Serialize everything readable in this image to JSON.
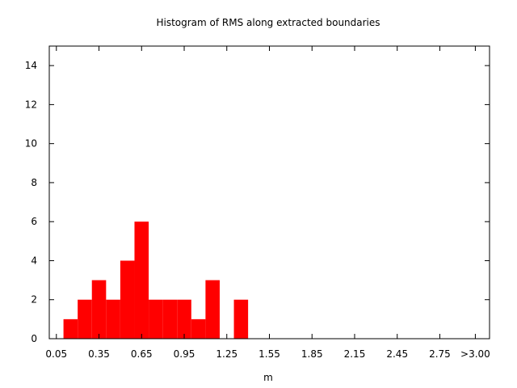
{
  "chart_data": {
    "type": "bar",
    "title": "Histogram of RMS along extracted boundaries",
    "xlabel": "m",
    "ylabel": "",
    "xlim": [
      0.0,
      3.1
    ],
    "ylim": [
      0,
      15
    ],
    "bin_width": 0.1,
    "x_ticks": [
      {
        "value": 0.05,
        "label": "0.05"
      },
      {
        "value": 0.35,
        "label": "0.35"
      },
      {
        "value": 0.65,
        "label": "0.65"
      },
      {
        "value": 0.95,
        "label": "0.95"
      },
      {
        "value": 1.25,
        "label": "1.25"
      },
      {
        "value": 1.55,
        "label": "1.55"
      },
      {
        "value": 1.85,
        "label": "1.85"
      },
      {
        "value": 2.15,
        "label": "2.15"
      },
      {
        "value": 2.45,
        "label": "2.45"
      },
      {
        "value": 2.75,
        "label": "2.75"
      },
      {
        "value": 3.0,
        "label": ">3.00"
      }
    ],
    "y_ticks": [
      0,
      2,
      4,
      6,
      8,
      10,
      12,
      14
    ],
    "bins": [
      {
        "x": 0.15,
        "count": 1
      },
      {
        "x": 0.25,
        "count": 2
      },
      {
        "x": 0.35,
        "count": 3
      },
      {
        "x": 0.45,
        "count": 2
      },
      {
        "x": 0.55,
        "count": 4
      },
      {
        "x": 0.65,
        "count": 6
      },
      {
        "x": 0.75,
        "count": 2
      },
      {
        "x": 0.85,
        "count": 2
      },
      {
        "x": 0.95,
        "count": 2
      },
      {
        "x": 1.05,
        "count": 1
      },
      {
        "x": 1.15,
        "count": 3
      },
      {
        "x": 1.35,
        "count": 2
      }
    ],
    "bar_color": "#ff0000",
    "grid": false
  }
}
